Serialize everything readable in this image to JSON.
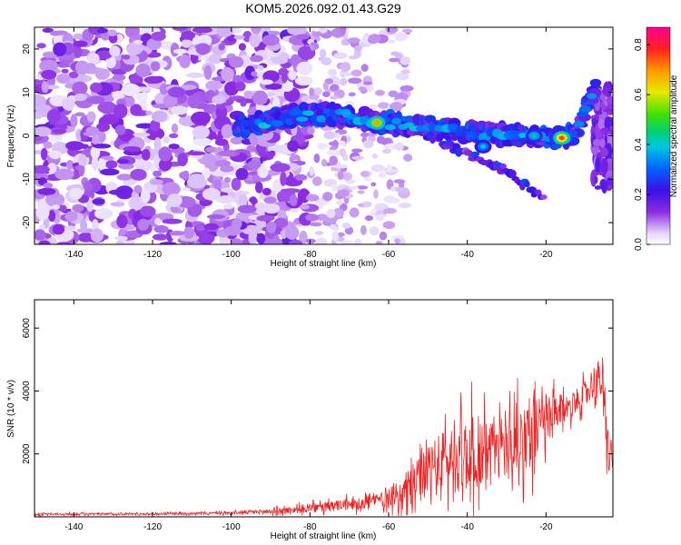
{
  "title": "KOM5.2026.092.01.43.G29",
  "chart_data": [
    {
      "type": "heatmap",
      "xlabel": "Height of straight line (km)",
      "ylabel": "Frequency (Hz)",
      "xlim": [
        -150,
        -3
      ],
      "ylim": [
        -25,
        25
      ],
      "xticks": [
        -140,
        -120,
        -100,
        -80,
        -60,
        -40,
        -20
      ],
      "yticks": [
        -20,
        -10,
        0,
        10,
        20
      ],
      "colorbar": {
        "label": "Normalized spectral amplitude",
        "range": [
          0,
          0.87
        ],
        "ticks": [
          0.0,
          0.2,
          0.4,
          0.6,
          0.8
        ]
      },
      "ridge": [
        {
          "x": -98,
          "y": 2
        },
        {
          "x": -85,
          "y": 4.5
        },
        {
          "x": -75,
          "y": 5
        },
        {
          "x": -65,
          "y": 3.5
        },
        {
          "x": -55,
          "y": 2.5
        },
        {
          "x": -45,
          "y": 1.5
        },
        {
          "x": -35,
          "y": 0.5
        },
        {
          "x": -25,
          "y": 0
        },
        {
          "x": -16,
          "y": -0.5
        },
        {
          "x": -12,
          "y": 1
        },
        {
          "x": -9,
          "y": 8
        },
        {
          "x": -7,
          "y": 12
        }
      ],
      "branch": [
        {
          "x": -50,
          "y": 0
        },
        {
          "x": -40,
          "y": -4
        },
        {
          "x": -30,
          "y": -8
        },
        {
          "x": -20,
          "y": -15
        }
      ],
      "peaks": [
        {
          "x": -63,
          "y": 3,
          "amplitude": 0.8
        },
        {
          "x": -16,
          "y": -0.5,
          "amplitude": 0.87
        },
        {
          "x": -23,
          "y": 0,
          "amplitude": 0.5
        },
        {
          "x": -36,
          "y": -2.5,
          "amplitude": 0.45
        }
      ]
    },
    {
      "type": "line",
      "xlabel": "Height of straight line (km)",
      "ylabel": "SNR (10 * v/v)",
      "xlim": [
        -150,
        -3
      ],
      "ylim": [
        0,
        6900
      ],
      "xticks": [
        -140,
        -120,
        -100,
        -80,
        -60,
        -40,
        -20
      ],
      "yticks": [
        2000,
        4000,
        6000
      ],
      "series": [
        {
          "color": "#ee2222",
          "x": [
            -150,
            -140,
            -130,
            -120,
            -110,
            -100,
            -95,
            -90,
            -85,
            -80,
            -75,
            -70,
            -65,
            -60,
            -57,
            -55,
            -52,
            -50,
            -48,
            -46,
            -44,
            -42,
            -40,
            -38,
            -36,
            -34,
            -32,
            -30,
            -28,
            -26,
            -24,
            -22,
            -20,
            -18,
            -16,
            -14,
            -12,
            -10,
            -8,
            -6,
            -5,
            -4,
            -3
          ],
          "mean": [
            80,
            85,
            90,
            95,
            110,
            120,
            150,
            170,
            220,
            270,
            320,
            400,
            480,
            650,
            750,
            900,
            1200,
            1400,
            1600,
            1750,
            1850,
            1900,
            2000,
            2100,
            2050,
            2100,
            2200,
            2300,
            2400,
            2500,
            2700,
            2800,
            2900,
            3200,
            3400,
            3500,
            3700,
            3900,
            4300,
            4400,
            3000,
            2000,
            1800
          ],
          "amplitude": [
            60,
            60,
            60,
            60,
            70,
            80,
            120,
            150,
            200,
            280,
            300,
            350,
            400,
            600,
            800,
            1100,
            1300,
            1500,
            1700,
            1800,
            2000,
            2100,
            2200,
            2300,
            2200,
            2100,
            2000,
            1900,
            2000,
            2100,
            2200,
            1900,
            1700,
            1200,
            900,
            800,
            700,
            800,
            1000,
            1200,
            1400,
            1300,
            1200
          ]
        }
      ]
    }
  ]
}
